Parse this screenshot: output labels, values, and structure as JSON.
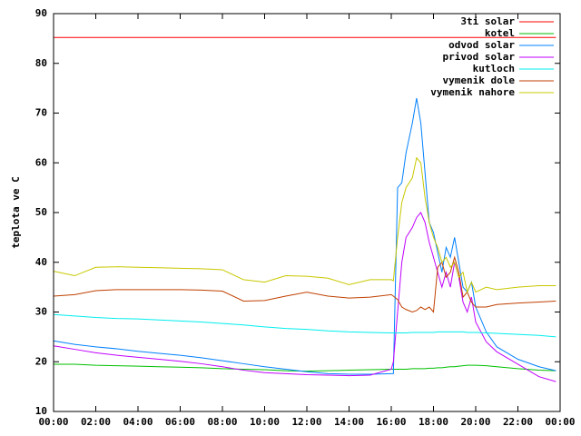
{
  "chart_data": {
    "type": "line",
    "ylabel": "teplota ve C",
    "x": [
      0,
      1,
      2,
      3,
      4,
      5,
      6,
      7,
      8,
      9,
      10,
      11,
      12,
      13,
      14,
      15,
      16,
      16.1,
      16.3,
      16.5,
      16.7,
      17,
      17.2,
      17.4,
      17.6,
      17.8,
      18,
      18.2,
      18.4,
      18.6,
      18.8,
      19,
      19.2,
      19.4,
      19.6,
      19.8,
      20,
      20.5,
      21,
      22,
      23,
      23.8
    ],
    "xlim": [
      0,
      24
    ],
    "xticks": [
      {
        "value": 0,
        "label": "00:00"
      },
      {
        "value": 2,
        "label": "02:00"
      },
      {
        "value": 4,
        "label": "04:00"
      },
      {
        "value": 6,
        "label": "06:00"
      },
      {
        "value": 8,
        "label": "08:00"
      },
      {
        "value": 10,
        "label": "10:00"
      },
      {
        "value": 12,
        "label": "12:00"
      },
      {
        "value": 14,
        "label": "14:00"
      },
      {
        "value": 16,
        "label": "16:00"
      },
      {
        "value": 18,
        "label": "18:00"
      },
      {
        "value": 20,
        "label": "20:00"
      },
      {
        "value": 22,
        "label": "22:00"
      },
      {
        "value": 24,
        "label": "00:00"
      }
    ],
    "ylim": [
      10,
      90
    ],
    "yticks": [
      10,
      20,
      30,
      40,
      50,
      60,
      70,
      80,
      90
    ],
    "legend": "top-right",
    "series": [
      {
        "name": "3ti solar",
        "color": "#ff0000",
        "values": [
          85.2,
          85.2,
          85.2,
          85.2,
          85.2,
          85.2,
          85.2,
          85.2,
          85.2,
          85.2,
          85.2,
          85.2,
          85.2,
          85.2,
          85.2,
          85.2,
          85.2,
          85.2,
          85.2,
          85.2,
          85.2,
          85.2,
          85.2,
          85.2,
          85.2,
          85.2,
          85.2,
          85.2,
          85.2,
          85.2,
          85.2,
          85.2,
          85.2,
          85.2,
          85.2,
          85.2,
          85.2,
          85.2,
          85.2,
          85.2,
          85.2,
          85.2
        ]
      },
      {
        "name": "kotel",
        "color": "#00c000",
        "values": [
          19.5,
          19.5,
          19.3,
          19.2,
          19.1,
          19.0,
          18.9,
          18.8,
          18.6,
          18.5,
          18.4,
          18.2,
          18.1,
          18.2,
          18.3,
          18.4,
          18.5,
          18.5,
          18.5,
          18.5,
          18.5,
          18.6,
          18.6,
          18.6,
          18.6,
          18.7,
          18.7,
          18.8,
          18.8,
          18.9,
          19.0,
          19.0,
          19.1,
          19.2,
          19.3,
          19.3,
          19.3,
          19.2,
          19.0,
          18.6,
          18.3,
          18.2
        ]
      },
      {
        "name": "odvod solar",
        "color": "#0080ff",
        "values": [
          24.2,
          23.5,
          23.0,
          22.6,
          22.1,
          21.7,
          21.3,
          20.8,
          20.2,
          19.6,
          19.0,
          18.5,
          18.0,
          17.6,
          17.5,
          17.5,
          17.6,
          17.6,
          55,
          56,
          62,
          68,
          73,
          68,
          58,
          48,
          46,
          42,
          38,
          43,
          41,
          45,
          40,
          35,
          34,
          36,
          31,
          26,
          23,
          20.5,
          19,
          18.2
        ]
      },
      {
        "name": "privod solar",
        "color": "#c000ff",
        "values": [
          23.2,
          22.5,
          21.8,
          21.3,
          20.9,
          20.5,
          20.1,
          19.6,
          19.0,
          18.3,
          17.8,
          17.6,
          17.4,
          17.3,
          17.2,
          17.3,
          18.5,
          20,
          30,
          40,
          45,
          47,
          49,
          50,
          48,
          44,
          41,
          38,
          35,
          38,
          35,
          40,
          37,
          32,
          30,
          33,
          28,
          24,
          22,
          19.5,
          17,
          16
        ]
      },
      {
        "name": "kutloch",
        "color": "#00eeee",
        "values": [
          29.5,
          29.2,
          28.9,
          28.7,
          28.6,
          28.4,
          28.2,
          28.0,
          27.7,
          27.4,
          27.0,
          26.7,
          26.5,
          26.2,
          26.0,
          25.9,
          25.8,
          25.8,
          25.8,
          25.8,
          25.8,
          25.9,
          25.9,
          25.9,
          25.9,
          25.9,
          25.9,
          26.0,
          26.0,
          26.0,
          26.0,
          26.0,
          26.0,
          26.0,
          25.9,
          25.9,
          25.9,
          25.8,
          25.7,
          25.5,
          25.3,
          25.0
        ]
      },
      {
        "name": "vymenik dole",
        "color": "#c04000",
        "values": [
          33.2,
          33.5,
          34.3,
          34.5,
          34.5,
          34.5,
          34.5,
          34.4,
          34.2,
          32.2,
          32.3,
          33.2,
          34.0,
          33.2,
          32.8,
          33.0,
          33.5,
          33.2,
          32.5,
          31,
          30.5,
          30.0,
          30.3,
          31,
          30.5,
          31,
          30,
          39,
          40,
          37,
          38,
          41,
          38,
          33,
          34,
          32,
          31,
          31,
          31.5,
          31.8,
          32.0,
          32.2
        ]
      },
      {
        "name": "vymenik nahore",
        "color": "#c8c800",
        "values": [
          38.2,
          37.3,
          39.0,
          39.1,
          39.0,
          38.9,
          38.8,
          38.7,
          38.5,
          36.5,
          36.0,
          37.3,
          37.2,
          36.8,
          35.5,
          36.5,
          36.5,
          36.3,
          45,
          52,
          55,
          57,
          61,
          60,
          53,
          48,
          45,
          43,
          40,
          41,
          39,
          40,
          37,
          38,
          34,
          36,
          34,
          35,
          34.5,
          35,
          35.3,
          35.3
        ]
      }
    ]
  }
}
